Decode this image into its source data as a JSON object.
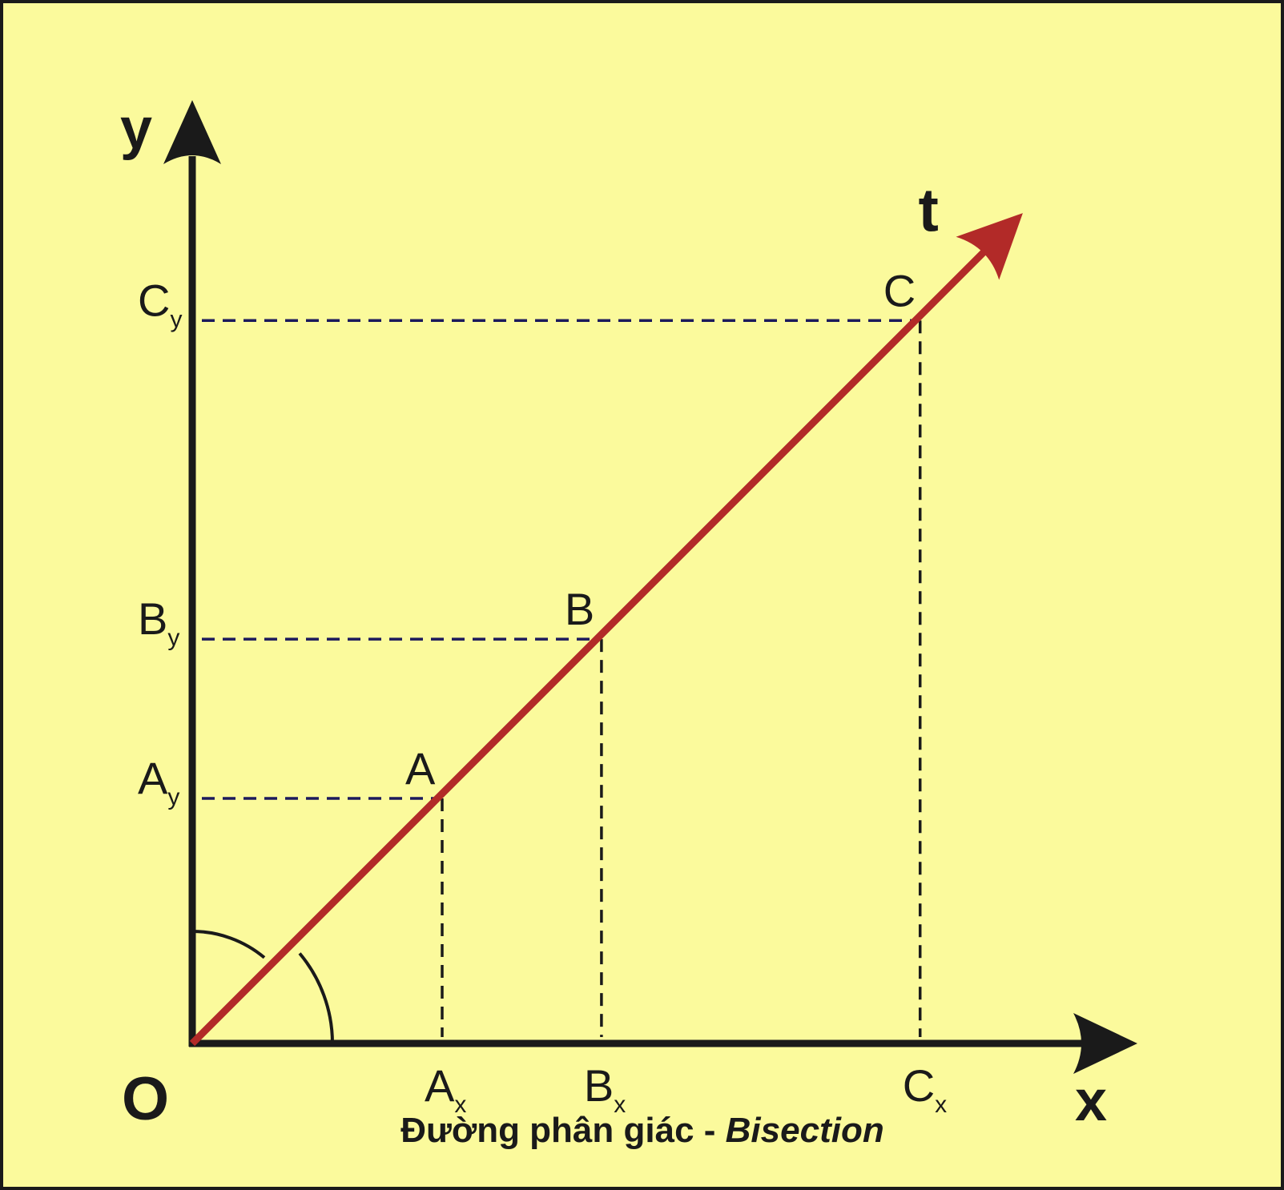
{
  "colors": {
    "background": "#fbfa9c",
    "frame": "#1a1a1a",
    "axes": "#1a1a1a",
    "bisector": "#b22a28",
    "projection_horizontal": "#1c1a5c",
    "projection_vertical": "#1a1a1a"
  },
  "axes": {
    "origin_label": "O",
    "x_label": "x",
    "y_label": "y",
    "bisector_label": "t"
  },
  "points": [
    {
      "id": "A",
      "label": "A",
      "x_label": "A",
      "x_sub": "x",
      "y_label": "A",
      "y_sub": "y",
      "value": 1
    },
    {
      "id": "B",
      "label": "B",
      "x_label": "B",
      "x_sub": "x",
      "y_label": "B",
      "y_sub": "y",
      "value": 1.65
    },
    {
      "id": "C",
      "label": "C",
      "x_label": "C",
      "x_sub": "x",
      "y_label": "C",
      "y_sub": "y",
      "value": 2.95
    }
  ],
  "caption": {
    "main": "Đường phân giác - ",
    "italic": "Bisection"
  },
  "icons": {
    "x_arrow": "arrow-right-icon",
    "y_arrow": "arrow-up-icon",
    "t_arrow": "arrow-diagonal-icon",
    "angle_marks": "angle-arc-icon"
  }
}
